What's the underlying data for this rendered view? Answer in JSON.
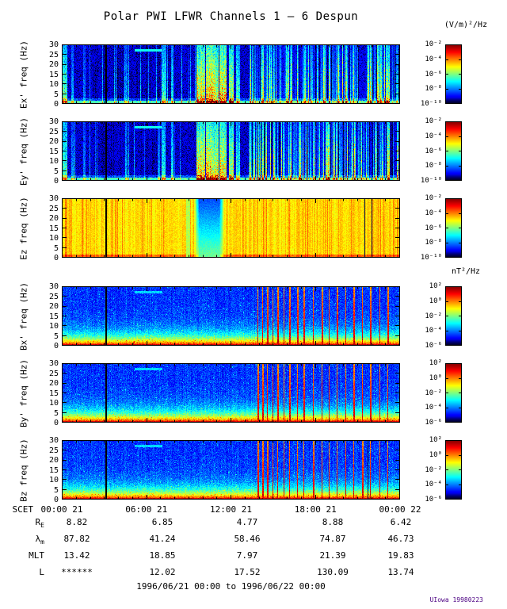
{
  "colors": {
    "frame": "#000000",
    "credit": "#4b0082",
    "background": "#ffffff"
  },
  "chart_data": {
    "type": "heatmap",
    "title": "Polar PWI LFWR Channels 1 — 6 Despun",
    "e_unit": "(V/m)²/Hz",
    "b_unit": "nT²/Hz",
    "x_axis": {
      "label": "SCET",
      "tick_labels": [
        "00:00 21",
        "06:00 21",
        "12:00 21",
        "18:00 21",
        "00:00 22"
      ],
      "hours_range": [
        0,
        24
      ],
      "major_tick_hours": 6,
      "minor_tick_hours": 1
    },
    "y_axis": {
      "tick_labels": [
        "0",
        "5",
        "10",
        "15",
        "20",
        "25",
        "30"
      ],
      "min": 0,
      "max": 30,
      "unit": "Hz"
    },
    "panels": [
      {
        "name": "ex",
        "ylabel": "Ex' freq (Hz)",
        "style": "E",
        "seed": 11,
        "colorbar_ticks": [
          "10⁻²",
          "10⁻⁴",
          "10⁻⁶",
          "10⁻⁸",
          "10⁻¹⁰"
        ],
        "vlines_black": [
          0.131
        ],
        "vlines_dark": []
      },
      {
        "name": "ey",
        "ylabel": "Ey' freq (Hz)",
        "style": "E",
        "seed": 23,
        "colorbar_ticks": [
          "10⁻²",
          "10⁻⁴",
          "10⁻⁶",
          "10⁻⁸",
          "10⁻¹⁰"
        ],
        "vlines_black": [
          0.131
        ],
        "vlines_dark": []
      },
      {
        "name": "ez",
        "ylabel": "Ez freq (Hz)",
        "style": "Ez",
        "seed": 37,
        "colorbar_ticks": [
          "10⁻²",
          "10⁻⁴",
          "10⁻⁶",
          "10⁻⁸",
          "10⁻¹⁰"
        ],
        "vlines_black": [
          0.131
        ],
        "vlines_dark": [
          0.894,
          0.916
        ]
      },
      {
        "name": "bx",
        "ylabel": "Bx' freq (Hz)",
        "style": "B",
        "seed": 41,
        "colorbar_ticks": [
          "10²",
          "10⁰",
          "10⁻²",
          "10⁻⁴",
          "10⁻⁶"
        ],
        "vlines_black": [
          0.131
        ],
        "vlines_dark": []
      },
      {
        "name": "by",
        "ylabel": "By' freq (Hz)",
        "style": "B",
        "seed": 53,
        "colorbar_ticks": [
          "10²",
          "10⁰",
          "10⁻²",
          "10⁻⁴",
          "10⁻⁶"
        ],
        "vlines_black": [
          0.131
        ],
        "vlines_dark": []
      },
      {
        "name": "bz",
        "ylabel": "Bz freq (Hz)",
        "style": "B",
        "seed": 67,
        "colorbar_ticks": [
          "10²",
          "10⁰",
          "10⁻²",
          "10⁻⁴",
          "10⁻⁶"
        ],
        "vlines_black": [
          0.131
        ],
        "vlines_dark": [
          0.905
        ]
      }
    ],
    "features": {
      "stripe_region_start": 0.555,
      "dash": {
        "x0": 0.215,
        "x1": 0.297,
        "freq": 27
      },
      "e_bursts": [
        [
          0.005,
          0.01,
          0.55
        ],
        [
          0.03,
          0.004,
          0.3
        ],
        [
          0.065,
          0.003,
          0.25
        ],
        [
          0.19,
          0.003,
          0.3
        ],
        [
          0.3,
          0.005,
          0.5
        ],
        [
          0.325,
          0.004,
          0.45
        ],
        [
          0.41,
          0.012,
          0.85
        ],
        [
          0.435,
          0.01,
          0.9
        ],
        [
          0.455,
          0.008,
          0.8
        ],
        [
          0.475,
          0.01,
          0.85
        ],
        [
          0.5,
          0.008,
          0.7
        ],
        [
          0.52,
          0.005,
          0.5
        ]
      ],
      "b_burst_fracs": [
        0.578,
        0.592,
        0.607,
        0.622,
        0.638,
        0.655,
        0.672,
        0.695,
        0.715,
        0.742,
        0.768,
        0.79,
        0.812,
        0.838,
        0.862,
        0.888,
        0.912,
        0.938,
        0.962
      ],
      "ez_blue_band": [
        0.405,
        0.465
      ],
      "ez_green_column": 0.372
    },
    "ephemeris": {
      "rows": [
        {
          "label_base": "R",
          "label_sub": "E",
          "values": [
            "8.82",
            "6.85",
            "4.77",
            "8.88",
            "6.42"
          ]
        },
        {
          "label_base": "λ",
          "label_sub": "m",
          "values": [
            "87.82",
            "41.24",
            "58.46",
            "74.87",
            "46.73"
          ]
        },
        {
          "label_base": "MLT",
          "label_sub": "",
          "values": [
            "13.42",
            "18.85",
            "7.97",
            "21.39",
            "19.83"
          ]
        },
        {
          "label_base": "L",
          "label_sub": "",
          "values": [
            "******",
            "12.02",
            "17.52",
            "130.09",
            "13.74"
          ]
        }
      ]
    },
    "footer": "1996/06/21 00:00 to 1996/06/22 00:00",
    "credit": "UIowa 19980223"
  }
}
